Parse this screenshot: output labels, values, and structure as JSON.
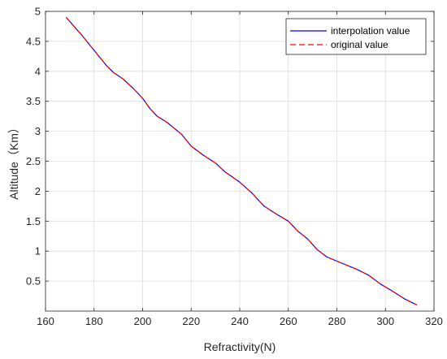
{
  "chart_data": {
    "type": "line",
    "xlabel": "Refractivity(N)",
    "ylabel": "Altitude（Km）",
    "xlim": [
      160,
      320
    ],
    "ylim": [
      0,
      5
    ],
    "xticks": [
      160,
      180,
      200,
      220,
      240,
      260,
      280,
      300,
      320
    ],
    "yticks": [
      0.5,
      1,
      1.5,
      2,
      2.5,
      3,
      3.5,
      4,
      4.5,
      5
    ],
    "xtick_labels": [
      "160",
      "180",
      "200",
      "220",
      "240",
      "260",
      "280",
      "300",
      "320"
    ],
    "ytick_labels": [
      "0.5",
      "1",
      "1.5",
      "2",
      "2.5",
      "3",
      "3.5",
      "4",
      "4.5",
      "5"
    ],
    "grid": true,
    "legend_position": "top-right",
    "series": [
      {
        "name": "interpolation value",
        "color": "#0000ff",
        "line_style": "solid",
        "x": [
          168.5,
          175,
          180,
          185,
          188,
          192,
          196,
          200,
          203,
          206,
          210,
          216,
          220,
          225,
          230,
          234,
          240,
          245,
          250,
          255,
          260,
          264,
          268,
          272,
          276,
          282,
          288,
          293,
          298,
          303,
          308,
          313
        ],
        "y": [
          4.9,
          4.6,
          4.35,
          4.1,
          3.98,
          3.87,
          3.72,
          3.55,
          3.38,
          3.25,
          3.15,
          2.95,
          2.75,
          2.6,
          2.47,
          2.32,
          2.15,
          1.97,
          1.75,
          1.62,
          1.5,
          1.33,
          1.2,
          1.02,
          0.9,
          0.8,
          0.7,
          0.6,
          0.45,
          0.33,
          0.2,
          0.1
        ]
      },
      {
        "name": "original value",
        "color": "#ff0000",
        "line_style": "dashed",
        "x": [
          168.5,
          175,
          180,
          185,
          188,
          192,
          196,
          200,
          203,
          206,
          210,
          216,
          220,
          225,
          230,
          234,
          240,
          245,
          250,
          255,
          260,
          264,
          268,
          272,
          276,
          282,
          288,
          293,
          298,
          303,
          308,
          313
        ],
        "y": [
          4.9,
          4.6,
          4.35,
          4.1,
          3.98,
          3.87,
          3.72,
          3.55,
          3.38,
          3.25,
          3.15,
          2.95,
          2.75,
          2.6,
          2.47,
          2.32,
          2.15,
          1.97,
          1.75,
          1.62,
          1.5,
          1.33,
          1.2,
          1.02,
          0.9,
          0.8,
          0.7,
          0.6,
          0.45,
          0.33,
          0.2,
          0.1
        ]
      }
    ]
  }
}
